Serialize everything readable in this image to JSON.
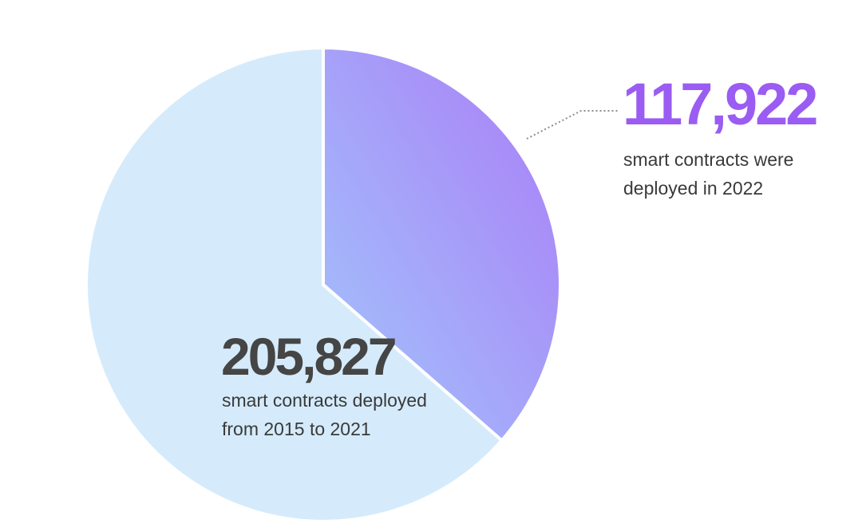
{
  "chart_data": {
    "type": "pie",
    "title": "",
    "slices": [
      {
        "value": 117922,
        "value_label": "117,922",
        "caption_lines": [
          "smart contracts were",
          "deployed in 2022"
        ],
        "color": "#a986f7"
      },
      {
        "value": 205827,
        "value_label": "205,827",
        "caption_lines": [
          "smart contracts deployed",
          "from 2015 to 2021"
        ],
        "color": "#d5ebfb"
      }
    ],
    "legend": "none"
  },
  "colors": {
    "accent_purple": "#9a5cf2",
    "gradient_purple": "#aa7cf6",
    "gradient_blue": "#a2c6fc",
    "background_slice": "#d5ebfb",
    "leader_line": "#8c8c8c",
    "dark_text": "#454545"
  }
}
